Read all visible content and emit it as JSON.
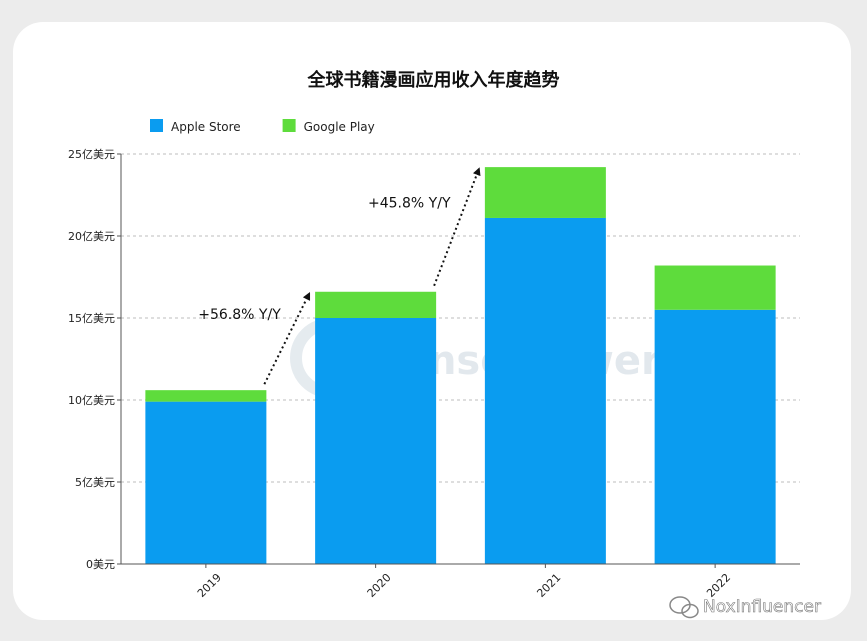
{
  "chart_data": {
    "type": "bar",
    "stacked": true,
    "title": "全球书籍漫画应用收入年度趋势",
    "categories": [
      "2019",
      "2020",
      "2021",
      "2022"
    ],
    "series": [
      {
        "name": "Apple Store",
        "color": "#0a9cf0",
        "values": [
          9.9,
          15.0,
          21.1,
          15.5
        ]
      },
      {
        "name": "Google Play",
        "color": "#5edc3c",
        "values": [
          0.7,
          1.6,
          3.1,
          2.7
        ]
      }
    ],
    "yticks": [
      "0美元",
      "5亿美元",
      "10亿美元",
      "15亿美元",
      "20亿美元",
      "25亿美元"
    ],
    "ylim": [
      0,
      25
    ],
    "grid": true,
    "legend_position": "top-left",
    "annotations": [
      {
        "text": "+56.8% Y/Y",
        "from": "2019",
        "to": "2020"
      },
      {
        "text": "+45.8% Y/Y",
        "from": "2020",
        "to": "2021"
      }
    ]
  },
  "watermark": "SensorTower",
  "credit": "NoxInfluencer",
  "icons": {
    "watermark": "sensortower-logo-icon",
    "credit": "wechat-icon"
  }
}
